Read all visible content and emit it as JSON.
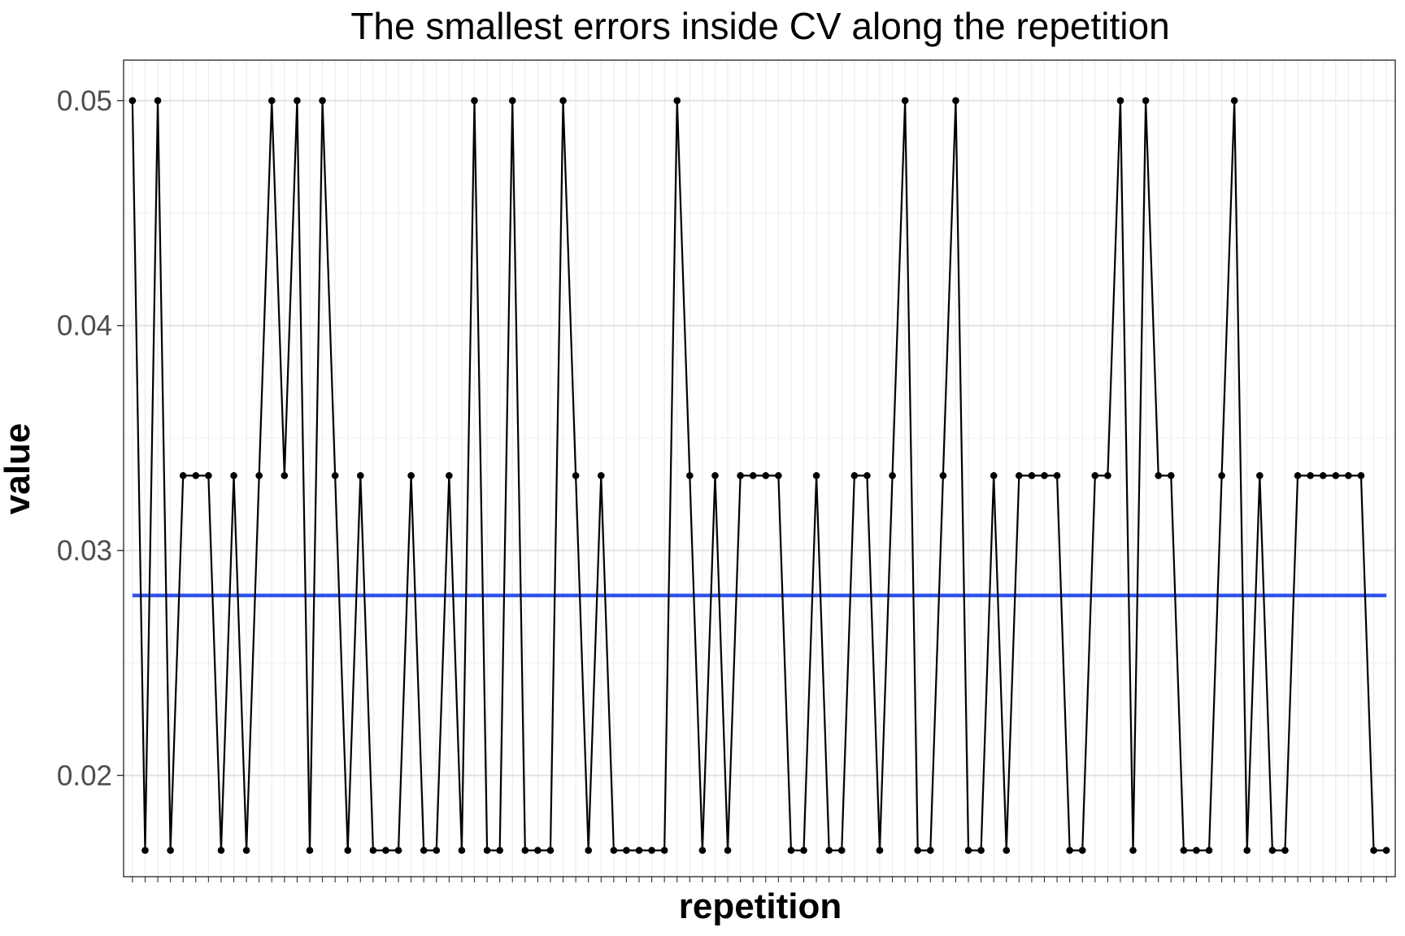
{
  "chart_data": {
    "type": "line",
    "title": "The smallest errors inside CV along the repetition",
    "xlabel": "repetition",
    "ylabel": "value",
    "ylim": [
      0.0155,
      0.0518
    ],
    "y_ticks": [
      0.02,
      0.03,
      0.04,
      0.05
    ],
    "y_tick_labels": [
      "0.02",
      "0.03",
      "0.04",
      "0.05"
    ],
    "grid": true,
    "x_tick_labels_shown": false,
    "x": [
      1,
      2,
      3,
      4,
      5,
      6,
      7,
      8,
      9,
      10,
      11,
      12,
      13,
      14,
      15,
      16,
      17,
      18,
      19,
      20,
      21,
      22,
      23,
      24,
      25,
      26,
      27,
      28,
      29,
      30,
      31,
      32,
      33,
      34,
      35,
      36,
      37,
      38,
      39,
      40,
      41,
      42,
      43,
      44,
      45,
      46,
      47,
      48,
      49,
      50,
      51,
      52,
      53,
      54,
      55,
      56,
      57,
      58,
      59,
      60,
      61,
      62,
      63,
      64,
      65,
      66,
      67,
      68,
      69,
      70,
      71,
      72,
      73,
      74,
      75,
      76,
      77,
      78,
      79,
      80,
      81,
      82,
      83,
      84,
      85,
      86,
      87,
      88,
      89,
      90,
      91,
      92,
      93,
      94,
      95,
      96,
      97,
      98,
      99,
      100
    ],
    "series": [
      {
        "color": "#000000",
        "values": [
          0.05,
          0.01667,
          0.05,
          0.01667,
          0.03333,
          0.03333,
          0.03333,
          0.01667,
          0.03333,
          0.01667,
          0.03333,
          0.05,
          0.03333,
          0.05,
          0.01667,
          0.05,
          0.03333,
          0.01667,
          0.03333,
          0.01667,
          0.01667,
          0.01667,
          0.03333,
          0.01667,
          0.01667,
          0.03333,
          0.01667,
          0.05,
          0.01667,
          0.01667,
          0.05,
          0.01667,
          0.01667,
          0.01667,
          0.05,
          0.03333,
          0.01667,
          0.03333,
          0.01667,
          0.01667,
          0.01667,
          0.01667,
          0.01667,
          0.05,
          0.03333,
          0.01667,
          0.03333,
          0.01667,
          0.03333,
          0.03333,
          0.03333,
          0.03333,
          0.01667,
          0.01667,
          0.03333,
          0.01667,
          0.01667,
          0.03333,
          0.03333,
          0.01667,
          0.03333,
          0.05,
          0.01667,
          0.01667,
          0.03333,
          0.05,
          0.01667,
          0.01667,
          0.03333,
          0.01667,
          0.03333,
          0.03333,
          0.03333,
          0.03333,
          0.01667,
          0.01667,
          0.03333,
          0.03333,
          0.05,
          0.01667,
          0.05,
          0.03333,
          0.03333,
          0.01667,
          0.01667,
          0.01667,
          0.03333,
          0.05,
          0.01667,
          0.03333,
          0.01667,
          0.01667,
          0.03333,
          0.03333,
          0.03333,
          0.03333,
          0.03333,
          0.03333,
          0.01667,
          0.01667
        ]
      }
    ],
    "reference_line": {
      "y": 0.028,
      "color": "#2f54eb"
    }
  }
}
